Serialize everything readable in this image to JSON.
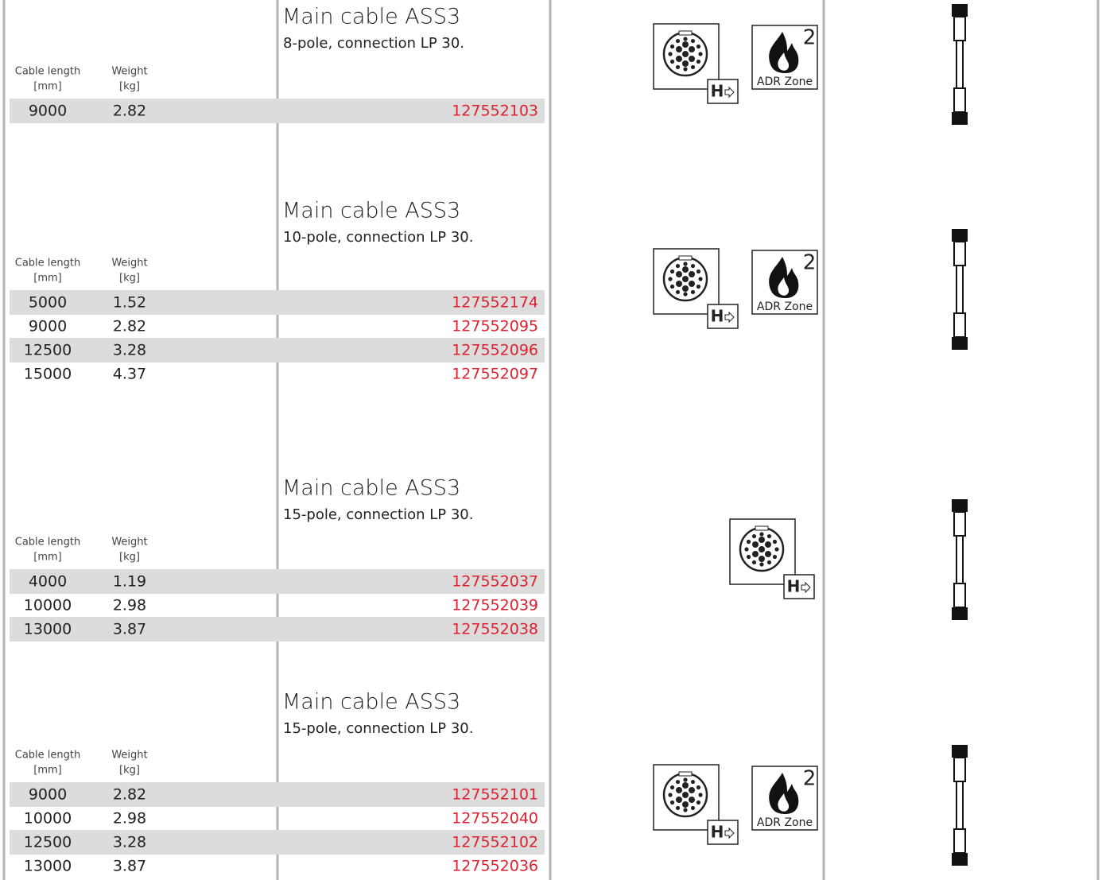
{
  "sections": [
    {
      "title": "Main cable ASS3",
      "subtitle": "8-pole, connection LP 30.",
      "headers": {
        "length": "Cable length",
        "length_unit": "[mm]",
        "weight": "Weight",
        "weight_unit": "[kg]"
      },
      "rows": [
        [
          "9000",
          "2.82",
          "127552103"
        ]
      ],
      "connector_badge": "H",
      "adr": {
        "zone": "2",
        "label": "ADR Zone"
      }
    },
    {
      "title": "Main cable ASS3",
      "subtitle": "10-pole, connection LP 30.",
      "headers": {
        "length": "Cable length",
        "length_unit": "[mm]",
        "weight": "Weight",
        "weight_unit": "[kg]"
      },
      "rows": [
        [
          "5000",
          "1.52",
          "127552174"
        ],
        [
          "9000",
          "2.82",
          "127552095"
        ],
        [
          "12500",
          "3.28",
          "127552096"
        ],
        [
          "15000",
          "4.37",
          "127552097"
        ]
      ],
      "connector_badge": "H",
      "adr": {
        "zone": "2",
        "label": "ADR Zone"
      }
    },
    {
      "title": "Main cable ASS3",
      "subtitle": "15-pole, connection LP 30.",
      "headers": {
        "length": "Cable length",
        "length_unit": "[mm]",
        "weight": "Weight",
        "weight_unit": "[kg]"
      },
      "rows": [
        [
          "4000",
          "1.19",
          "127552037"
        ],
        [
          "10000",
          "2.98",
          "127552039"
        ],
        [
          "13000",
          "3.87",
          "127552038"
        ]
      ],
      "connector_badge": "H"
    },
    {
      "title": "Main cable ASS3",
      "subtitle": "15-pole, connection LP 30.",
      "headers": {
        "length": "Cable length",
        "length_unit": "[mm]",
        "weight": "Weight",
        "weight_unit": "[kg]"
      },
      "rows": [
        [
          "9000",
          "2.82",
          "127552101"
        ],
        [
          "10000",
          "2.98",
          "127552040"
        ],
        [
          "12500",
          "3.28",
          "127552102"
        ],
        [
          "13000",
          "3.87",
          "127552036"
        ]
      ],
      "connector_badge": "H",
      "adr": {
        "zone": "2",
        "label": "ADR Zone"
      }
    }
  ]
}
